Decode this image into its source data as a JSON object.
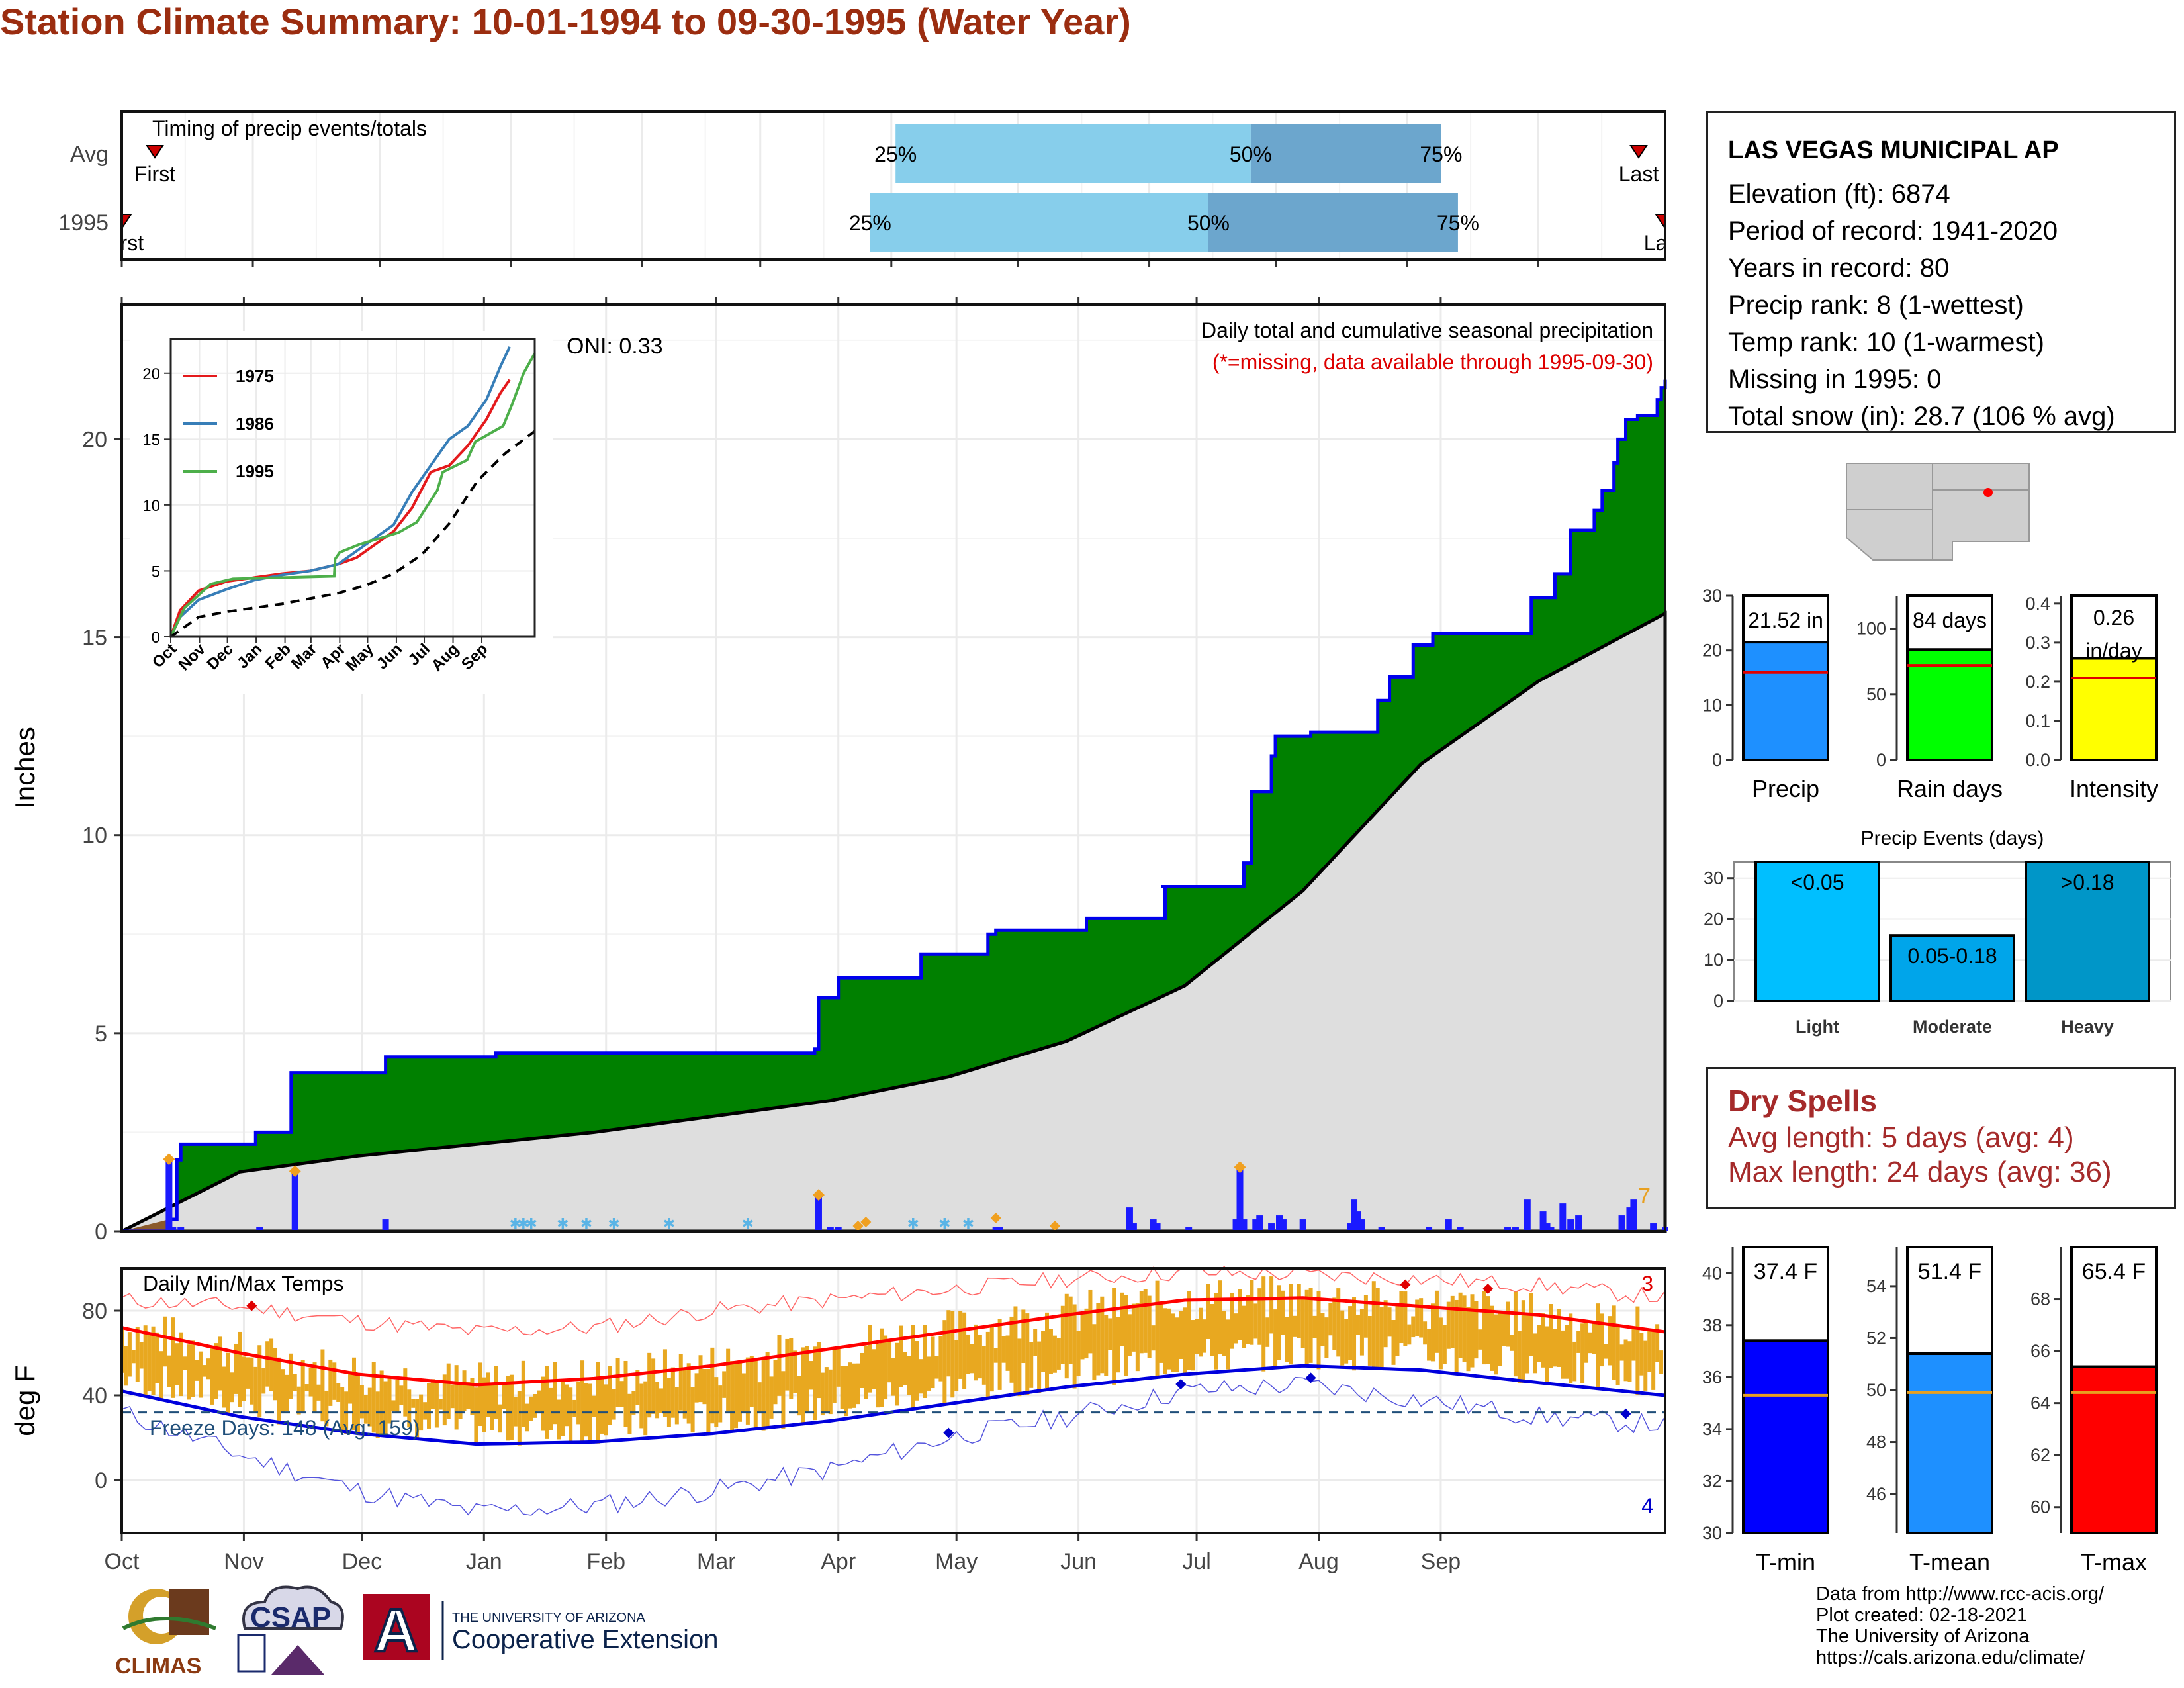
{
  "title": "Station Climate Summary: 10-01-1994 to 09-30-1995 (Water Year)",
  "station": {
    "name": "LAS VEGAS MUNICIPAL AP",
    "lines": [
      "Elevation (ft): 6874",
      "Period of record: 1941-2020",
      "Years in record: 80",
      "Precip rank: 8 (1-wettest)",
      "Temp rank: 10 (1-warmest)",
      "Missing in 1995: 0",
      "Total snow (in): 28.7 (106 % avg)"
    ]
  },
  "dry_spells": {
    "title": "Dry Spells",
    "avg_line": "Avg length: 5 days (avg: 4)",
    "max_line": "Max length: 24 days (avg: 36)"
  },
  "credits": [
    "Data from http://www.rcc-acis.org/",
    "Plot created: 02-18-2021",
    "The University of Arizona",
    "https://cals.arizona.edu/climate/"
  ],
  "logos": {
    "climas": "CLIMAS",
    "csap": "CSAP",
    "ua_small": "THE UNIVERSITY OF ARIZONA",
    "ua_big": "Cooperative Extension",
    "ua_letter": "A"
  },
  "colors": {
    "title": "#9b2d10",
    "cumulative_fill": "#008000",
    "cumulative_line": "#0000ee",
    "avg_fill": "#dedede",
    "daily_bar": "#1a1aff",
    "temp_bar": "#e8a820",
    "tmax_avg": "#ff0000",
    "tmin_avg": "#0000dd",
    "precip_bar": "#1e90ff",
    "raindays_bar": "#00ff00",
    "intensity_bar": "#ffff00",
    "light_bar": "#00bfff",
    "moderate_bar": "#00a5ea",
    "heavy_bar": "#0096c8"
  },
  "chart_data": [
    {
      "id": "timing",
      "type": "bar",
      "title": "Timing of precip events/totals",
      "rows": [
        {
          "label": "Avg",
          "first": "First",
          "last": "Last",
          "q25": "2022-04-02",
          "q50": "2022-06-25",
          "q75": "2022-08-09",
          "q25_label": "25%",
          "q50_label": "50%",
          "q75_label": "75%"
        },
        {
          "label": "1995",
          "first": "First",
          "last": "Last",
          "q25": "1995-03-27",
          "q50": "1995-06-15",
          "q75": "1995-08-13",
          "q25_label": "25%",
          "q50_label": "50%",
          "q75_label": "75%"
        }
      ]
    },
    {
      "id": "precip_main",
      "type": "area",
      "title": "Daily total and cumulative seasonal precipitation",
      "subtitle": "(*=missing, data available through 1995-09-30)",
      "annotation": "ONI: 0.33",
      "corner_count": "7",
      "ylabel": "Inches",
      "ylim": [
        0,
        22
      ],
      "yticks": [
        0,
        5,
        10,
        15,
        20
      ],
      "xticks": [
        "Oct",
        "Nov",
        "Dec",
        "Jan",
        "Feb",
        "Mar",
        "Apr",
        "May",
        "Jun",
        "Jul",
        "Aug",
        "Sep"
      ],
      "cumulative_1995": [
        [
          0,
          0
        ],
        [
          12,
          0.3
        ],
        [
          14,
          1.8
        ],
        [
          15,
          2.2
        ],
        [
          33,
          2.2
        ],
        [
          34,
          2.5
        ],
        [
          42,
          2.5
        ],
        [
          43,
          4.0
        ],
        [
          66,
          4.0
        ],
        [
          67,
          4.4
        ],
        [
          94,
          4.4
        ],
        [
          95,
          4.5
        ],
        [
          176,
          4.6
        ],
        [
          177,
          5.9
        ],
        [
          182,
          6.4
        ],
        [
          201,
          6.4
        ],
        [
          203,
          7.0
        ],
        [
          216,
          7.0
        ],
        [
          220,
          7.5
        ],
        [
          222,
          7.6
        ],
        [
          244,
          7.6
        ],
        [
          245,
          7.9
        ],
        [
          264,
          7.9
        ],
        [
          265,
          8.7
        ],
        [
          264,
          8.7
        ],
        [
          283,
          8.7
        ],
        [
          285,
          9.3
        ],
        [
          287,
          11.1
        ],
        [
          292,
          12.0
        ],
        [
          293,
          12.5
        ],
        [
          302,
          12.6
        ],
        [
          318,
          12.6
        ],
        [
          319,
          13.4
        ],
        [
          322,
          14.0
        ],
        [
          328,
          14.8
        ],
        [
          333,
          15.1
        ],
        [
          356,
          15.1
        ],
        [
          358,
          16.0
        ],
        [
          364,
          16.6
        ],
        [
          368,
          17.7
        ],
        [
          372,
          17.7
        ],
        [
          374,
          18.2
        ],
        [
          376,
          18.7
        ],
        [
          379,
          19.4
        ],
        [
          380,
          20.0
        ],
        [
          382,
          20.5
        ],
        [
          385,
          20.6
        ],
        [
          390,
          21.0
        ],
        [
          391,
          21.3
        ],
        [
          392,
          21.5
        ]
      ],
      "avg_cumulative": [
        [
          0,
          0
        ],
        [
          30,
          1.5
        ],
        [
          60,
          1.9
        ],
        [
          90,
          2.2
        ],
        [
          120,
          2.5
        ],
        [
          150,
          2.9
        ],
        [
          180,
          3.3
        ],
        [
          210,
          3.9
        ],
        [
          240,
          4.8
        ],
        [
          270,
          6.2
        ],
        [
          300,
          8.6
        ],
        [
          330,
          11.8
        ],
        [
          360,
          13.9
        ],
        [
          392,
          15.6
        ]
      ],
      "daily_1995": [
        [
          12,
          1.8
        ],
        [
          13,
          0.1
        ],
        [
          15,
          0.1
        ],
        [
          35,
          0.1
        ],
        [
          44,
          1.5
        ],
        [
          67,
          0.3
        ],
        [
          177,
          0.9
        ],
        [
          180,
          0.1
        ],
        [
          182,
          0.1
        ],
        [
          222,
          0.1
        ],
        [
          223,
          0.1
        ],
        [
          256,
          0.6
        ],
        [
          257,
          0.2
        ],
        [
          262,
          0.3
        ],
        [
          263,
          0.2
        ],
        [
          271,
          0.1
        ],
        [
          283,
          0.3
        ],
        [
          284,
          1.6
        ],
        [
          285,
          0.3
        ],
        [
          288,
          0.3
        ],
        [
          289,
          0.4
        ],
        [
          292,
          0.2
        ],
        [
          294,
          0.4
        ],
        [
          295,
          0.3
        ],
        [
          300,
          0.3
        ],
        [
          312,
          0.2
        ],
        [
          313,
          0.8
        ],
        [
          314,
          0.5
        ],
        [
          315,
          0.3
        ],
        [
          320,
          0.1
        ],
        [
          332,
          0.1
        ],
        [
          337,
          0.3
        ],
        [
          340,
          0.1
        ],
        [
          352,
          0.1
        ],
        [
          354,
          0.1
        ],
        [
          357,
          0.8
        ],
        [
          361,
          0.5
        ],
        [
          362,
          0.2
        ],
        [
          363,
          0.1
        ],
        [
          366,
          0.7
        ],
        [
          368,
          0.3
        ],
        [
          370,
          0.4
        ],
        [
          381,
          0.4
        ],
        [
          383,
          0.6
        ],
        [
          384,
          0.8
        ],
        [
          389,
          0.2
        ],
        [
          392,
          0.1
        ]
      ],
      "snow_days": [
        100,
        102,
        104,
        112,
        118,
        125,
        139,
        159,
        201,
        209,
        215
      ]
    },
    {
      "id": "inset_cumulative",
      "type": "line",
      "yticks": [
        0,
        5,
        10,
        15,
        20
      ],
      "xticks": [
        "Oct",
        "Nov",
        "Dec",
        "Jan",
        "Feb",
        "Mar",
        "Apr",
        "May",
        "Jun",
        "Jul",
        "Aug",
        "Sep"
      ],
      "ylim": [
        0,
        22
      ],
      "series": [
        {
          "name": "1975",
          "color": "#e41a1c",
          "values": [
            [
              0,
              0
            ],
            [
              10,
              2
            ],
            [
              30,
              3.5
            ],
            [
              60,
              4.2
            ],
            [
              90,
              4.5
            ],
            [
              120,
              4.8
            ],
            [
              150,
              5
            ],
            [
              180,
              5.5
            ],
            [
              200,
              6
            ],
            [
              220,
              7
            ],
            [
              240,
              8
            ],
            [
              260,
              9.8
            ],
            [
              280,
              12.5
            ],
            [
              300,
              13
            ],
            [
              320,
              14.5
            ],
            [
              340,
              16.5
            ],
            [
              355,
              18.5
            ],
            [
              365,
              19.5
            ]
          ]
        },
        {
          "name": "1986",
          "color": "#377eb8",
          "values": [
            [
              0,
              0
            ],
            [
              10,
              1.5
            ],
            [
              30,
              2.8
            ],
            [
              60,
              3.6
            ],
            [
              90,
              4.3
            ],
            [
              120,
              4.7
            ],
            [
              150,
              5.0
            ],
            [
              180,
              5.5
            ],
            [
              200,
              6.5
            ],
            [
              220,
              7.5
            ],
            [
              240,
              8.5
            ],
            [
              260,
              11
            ],
            [
              280,
              13
            ],
            [
              300,
              15
            ],
            [
              320,
              16
            ],
            [
              340,
              18
            ],
            [
              355,
              20.5
            ],
            [
              365,
              22
            ]
          ]
        },
        {
          "name": "1995",
          "color": "#4daf4a",
          "values": [
            [
              0,
              0
            ],
            [
              12,
              1.8
            ],
            [
              15,
              2.2
            ],
            [
              43,
              4.0
            ],
            [
              67,
              4.4
            ],
            [
              176,
              4.6
            ],
            [
              177,
              5.9
            ],
            [
              182,
              6.4
            ],
            [
              203,
              7.0
            ],
            [
              245,
              7.9
            ],
            [
              265,
              8.7
            ],
            [
              287,
              11.1
            ],
            [
              293,
              12.5
            ],
            [
              319,
              13.4
            ],
            [
              328,
              14.8
            ],
            [
              358,
              16.0
            ],
            [
              368,
              17.7
            ],
            [
              380,
              20.0
            ],
            [
              392,
              21.5
            ]
          ]
        },
        {
          "name": "",
          "color": "#000000",
          "dashed": true,
          "values": [
            [
              0,
              0
            ],
            [
              30,
              1.5
            ],
            [
              60,
              1.9
            ],
            [
              90,
              2.2
            ],
            [
              120,
              2.5
            ],
            [
              150,
              2.9
            ],
            [
              180,
              3.3
            ],
            [
              210,
              3.9
            ],
            [
              240,
              4.8
            ],
            [
              270,
              6.2
            ],
            [
              300,
              8.6
            ],
            [
              330,
              11.8
            ],
            [
              360,
              13.9
            ],
            [
              392,
              15.6
            ]
          ]
        }
      ]
    },
    {
      "id": "temps",
      "type": "bar",
      "title": "Daily Min/Max Temps",
      "ylabel": "deg F",
      "yticks": [
        0,
        40,
        80
      ],
      "ylim": [
        -25,
        100
      ],
      "freeze_label": "Freeze Days: 148 (Avg: 159)",
      "freeze_line": 32,
      "top_count": "3",
      "bottom_count": "4",
      "xticks": [
        "Oct",
        "Nov",
        "Dec",
        "Jan",
        "Feb",
        "Mar",
        "Apr",
        "May",
        "Jun",
        "Jul",
        "Aug",
        "Sep"
      ],
      "tmax_avg": [
        [
          0,
          72
        ],
        [
          30,
          60
        ],
        [
          60,
          50
        ],
        [
          90,
          45
        ],
        [
          120,
          48
        ],
        [
          150,
          54
        ],
        [
          180,
          62
        ],
        [
          210,
          70
        ],
        [
          240,
          78
        ],
        [
          270,
          85
        ],
        [
          300,
          86
        ],
        [
          330,
          82
        ],
        [
          360,
          78
        ],
        [
          392,
          70
        ]
      ],
      "tmin_avg": [
        [
          0,
          42
        ],
        [
          30,
          30
        ],
        [
          60,
          22
        ],
        [
          90,
          17
        ],
        [
          120,
          18
        ],
        [
          150,
          22
        ],
        [
          180,
          28
        ],
        [
          210,
          36
        ],
        [
          240,
          44
        ],
        [
          270,
          50
        ],
        [
          300,
          54
        ],
        [
          330,
          52
        ],
        [
          360,
          46
        ],
        [
          392,
          40
        ]
      ],
      "tmax_record": [
        [
          0,
          85
        ],
        [
          30,
          82
        ],
        [
          60,
          75
        ],
        [
          90,
          70
        ],
        [
          120,
          72
        ],
        [
          150,
          80
        ],
        [
          180,
          85
        ],
        [
          210,
          90
        ],
        [
          240,
          95
        ],
        [
          270,
          98
        ],
        [
          300,
          97
        ],
        [
          330,
          95
        ],
        [
          360,
          92
        ],
        [
          392,
          86
        ]
      ],
      "tmin_record": [
        [
          0,
          32
        ],
        [
          30,
          12
        ],
        [
          60,
          -5
        ],
        [
          90,
          -15
        ],
        [
          120,
          -12
        ],
        [
          150,
          -5
        ],
        [
          180,
          5
        ],
        [
          210,
          20
        ],
        [
          240,
          30
        ],
        [
          270,
          42
        ],
        [
          300,
          45
        ],
        [
          330,
          38
        ],
        [
          360,
          30
        ],
        [
          392,
          26
        ]
      ]
    },
    {
      "id": "totals",
      "type": "bar",
      "charts": [
        {
          "label": "Precip",
          "value": 21.52,
          "value_label": "21.52 in",
          "avg": 16.0,
          "ylim": [
            0,
            30
          ],
          "yticks": [
            0,
            10,
            20,
            30
          ],
          "color": "#1e90ff"
        },
        {
          "label": "Rain days",
          "value": 84,
          "value_label": "84 days",
          "avg": 72,
          "ylim": [
            0,
            125
          ],
          "yticks": [
            0,
            50,
            100
          ],
          "color": "#00ff00"
        },
        {
          "label": "Intensity",
          "value": 0.26,
          "value_label": "0.26 in/day",
          "avg": 0.21,
          "ylim": [
            0,
            0.42
          ],
          "yticks": [
            0.0,
            0.1,
            0.2,
            0.3,
            0.4
          ],
          "color": "#ffff00"
        }
      ]
    },
    {
      "id": "precip_events",
      "type": "bar",
      "title": "Precip Events (days)",
      "categories": [
        "Light",
        "Moderate",
        "Heavy"
      ],
      "bar_labels": [
        "<0.05",
        "0.05-0.18",
        ">0.18"
      ],
      "values": [
        34,
        16,
        34
      ],
      "ylim": [
        0,
        34
      ],
      "yticks": [
        0,
        10,
        20,
        30
      ]
    },
    {
      "id": "temp_means",
      "type": "bar",
      "charts": [
        {
          "label": "T-min",
          "value": 37.4,
          "value_label": "37.4 F",
          "avg": 35.3,
          "ylim": [
            30,
            41
          ],
          "yticks": [
            30,
            32,
            34,
            36,
            38,
            40
          ],
          "color": "#0000ff"
        },
        {
          "label": "T-mean",
          "value": 51.4,
          "value_label": "51.4 F",
          "avg": 49.9,
          "ylim": [
            44.5,
            55.5
          ],
          "yticks": [
            46,
            48,
            50,
            52,
            54
          ],
          "color": "#1e90ff"
        },
        {
          "label": "T-max",
          "value": 65.4,
          "value_label": "65.4 F",
          "avg": 64.4,
          "ylim": [
            59,
            70
          ],
          "yticks": [
            60,
            62,
            64,
            66,
            68
          ],
          "color": "#ff0000"
        }
      ]
    }
  ]
}
